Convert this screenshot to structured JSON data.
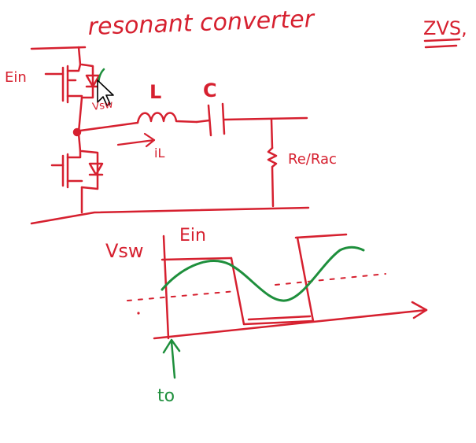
{
  "board": {
    "title": "resonant converter",
    "note_right": "ZVS,",
    "colors": {
      "red_ink": "#d6202f",
      "green_ink": "#1e8f3c",
      "background": "#ffffff"
    }
  },
  "circuit": {
    "source_label": "Ein",
    "switch_node_label": "Vsw",
    "inductor_label": "L",
    "capacitor_label": "C",
    "current_label": "iL",
    "load_label": "Re/Rac"
  },
  "waveform": {
    "y_label": "Vsw",
    "level_label": "Ein",
    "time_marker_label": "to"
  }
}
